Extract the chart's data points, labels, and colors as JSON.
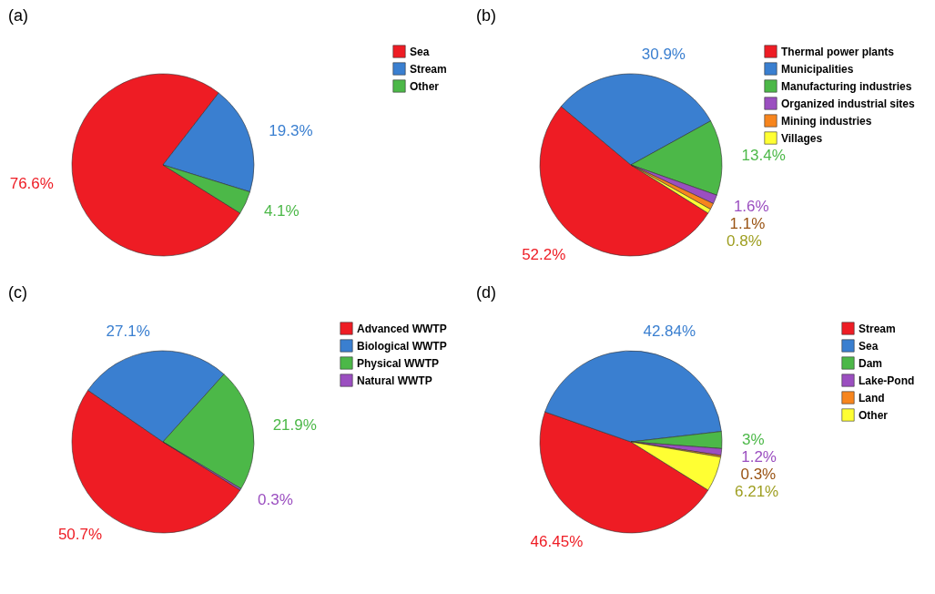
{
  "chart_data": [
    {
      "type": "pie",
      "title": "(a)",
      "categories": [
        "Sea",
        "Stream",
        "Other"
      ],
      "values": [
        76.6,
        19.3,
        4.1
      ],
      "colors": [
        "#ee1c24",
        "#3a7fd0",
        "#4cb848"
      ],
      "value_labels": [
        "76.6%",
        "19.3%",
        "4.1%"
      ],
      "legend": "top right"
    },
    {
      "type": "pie",
      "title": "(b)",
      "categories": [
        "Thermal power plants",
        "Municipalities",
        "Manufacturing industries",
        "Organized industrial sites",
        "Mining industries",
        "Villages"
      ],
      "values": [
        52.2,
        30.9,
        13.4,
        1.6,
        1.1,
        0.8
      ],
      "colors": [
        "#ee1c24",
        "#3a7fd0",
        "#4cb848",
        "#9b4fc0",
        "#f7851d",
        "#ffff33"
      ],
      "value_labels": [
        "52.2%",
        "30.9%",
        "13.4%",
        "1.6%",
        "1.1%",
        "0.8%"
      ],
      "legend": "top right"
    },
    {
      "type": "pie",
      "title": "(c)",
      "categories": [
        "Advanced WWTP",
        "Biological WWTP",
        "Physical WWTP",
        "Natural WWTP"
      ],
      "values": [
        50.7,
        27.1,
        21.9,
        0.3
      ],
      "colors": [
        "#ee1c24",
        "#3a7fd0",
        "#4cb848",
        "#9b4fc0"
      ],
      "value_labels": [
        "50.7%",
        "27.1%",
        "21.9%",
        "0.3%"
      ],
      "legend": "top right"
    },
    {
      "type": "pie",
      "title": "(d)",
      "categories": [
        "Stream",
        "Sea",
        "Dam",
        "Lake-Pond",
        "Land",
        "Other"
      ],
      "values": [
        46.45,
        42.84,
        3,
        1.2,
        0.3,
        6.21
      ],
      "colors": [
        "#ee1c24",
        "#3a7fd0",
        "#4cb848",
        "#9b4fc0",
        "#f7851d",
        "#ffff33"
      ],
      "value_labels": [
        "46.45%",
        "42.84%",
        "3%",
        "1.2%",
        "0.3%",
        "6.21%"
      ],
      "legend": "top right"
    }
  ]
}
